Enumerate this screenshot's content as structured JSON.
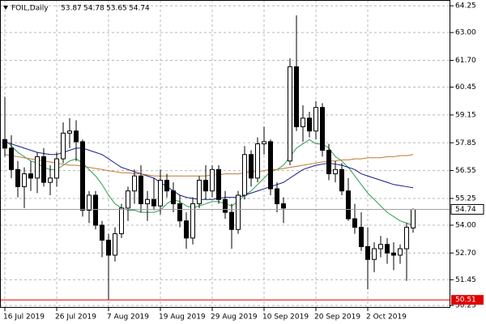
{
  "chart_data": {
    "type": "candlestick",
    "title": "FOIL,Daily",
    "x": [
      "16 Jul 2019",
      null,
      null,
      null,
      null,
      null,
      null,
      null,
      "26 Jul 2019",
      null,
      null,
      null,
      null,
      null,
      null,
      null,
      "7 Aug 2019",
      null,
      null,
      null,
      null,
      null,
      null,
      null,
      "19 Aug 2019",
      null,
      null,
      null,
      null,
      null,
      null,
      null,
      "29 Aug 2019",
      null,
      null,
      null,
      null,
      null,
      null,
      null,
      "10 Sep 2019",
      null,
      null,
      null,
      null,
      null,
      null,
      null,
      "20 Sep 2019",
      null,
      null,
      null,
      null,
      null,
      null,
      null,
      "2 Oct 2019",
      null,
      null,
      null,
      null,
      null,
      null,
      null
    ],
    "open": [
      58.0,
      57.6,
      56.6,
      55.8,
      56.4,
      56.2,
      57.2,
      56.0,
      56.2,
      57.1,
      58.3,
      58.4,
      57.9,
      54.7,
      55.4,
      54.0,
      53.3,
      52.6,
      53.6,
      54.8,
      55.6,
      56.3,
      55.0,
      55.2,
      54.9,
      56.1,
      55.6,
      55.0,
      54.2,
      53.4,
      55.0,
      56.1,
      55.6,
      56.6,
      55.2,
      54.6,
      53.8,
      55.4,
      57.3,
      56.2,
      57.8,
      57.9,
      55.7,
      55.0,
      57.0,
      61.4,
      58.6,
      59.0,
      58.4,
      59.5,
      57.5,
      56.4,
      56.6,
      55.6,
      54.3,
      53.9,
      53.0,
      52.4,
      52.9,
      53.1,
      52.7,
      52.6,
      52.9,
      53.87
    ],
    "high": [
      60.0,
      58.2,
      57.0,
      56.7,
      57.0,
      57.4,
      57.6,
      56.8,
      57.4,
      58.8,
      59.0,
      58.9,
      58.0,
      55.6,
      55.6,
      54.2,
      53.6,
      53.9,
      55.0,
      55.8,
      56.6,
      56.8,
      55.6,
      56.2,
      56.6,
      56.4,
      56.0,
      55.4,
      54.6,
      55.3,
      56.3,
      56.8,
      56.8,
      56.8,
      55.6,
      55.0,
      55.6,
      57.7,
      57.5,
      58.1,
      58.6,
      58.0,
      56.0,
      55.3,
      61.8,
      63.8,
      59.6,
      59.3,
      59.8,
      59.7,
      57.8,
      57.0,
      56.9,
      56.2,
      55.0,
      54.6,
      53.9,
      53.2,
      53.5,
      53.4,
      53.2,
      53.1,
      54.1,
      54.78
    ],
    "low": [
      57.2,
      56.2,
      55.3,
      54.8,
      55.6,
      55.5,
      55.8,
      55.4,
      55.8,
      56.9,
      57.6,
      57.0,
      54.4,
      54.1,
      53.8,
      52.5,
      50.51,
      52.3,
      53.4,
      54.2,
      55.0,
      54.6,
      54.2,
      54.7,
      54.5,
      55.3,
      54.6,
      53.9,
      52.9,
      53.1,
      54.8,
      55.2,
      55.3,
      55.0,
      54.3,
      52.9,
      53.6,
      55.2,
      55.8,
      56.0,
      57.3,
      55.4,
      54.6,
      54.1,
      56.8,
      58.4,
      57.9,
      58.1,
      58.0,
      57.2,
      56.1,
      56.0,
      55.4,
      54.2,
      53.6,
      52.8,
      51.0,
      51.8,
      52.5,
      52.2,
      51.9,
      52.2,
      51.4,
      53.65
    ],
    "close": [
      57.6,
      56.6,
      55.8,
      56.4,
      56.2,
      57.2,
      56.0,
      56.2,
      57.1,
      58.3,
      58.4,
      57.9,
      54.7,
      55.4,
      54.0,
      53.3,
      52.6,
      53.6,
      54.8,
      55.6,
      56.3,
      55.0,
      55.2,
      54.9,
      56.1,
      55.6,
      55.0,
      54.2,
      53.4,
      55.0,
      56.1,
      55.6,
      56.6,
      55.2,
      54.6,
      53.8,
      55.4,
      57.3,
      56.2,
      57.8,
      57.9,
      55.7,
      55.0,
      54.8,
      61.4,
      58.6,
      59.0,
      58.4,
      59.5,
      57.5,
      56.4,
      56.6,
      55.6,
      54.3,
      53.9,
      53.0,
      52.4,
      52.9,
      53.1,
      52.7,
      52.6,
      52.9,
      53.9,
      54.74
    ],
    "lines": [
      {
        "color": "#2e9e50",
        "values": [
          58.0,
          57.7,
          57.4,
          57.2,
          57.0,
          56.9,
          56.7,
          56.6,
          56.6,
          56.8,
          57.0,
          57.1,
          56.9,
          56.6,
          56.3,
          55.9,
          55.4,
          55.0,
          54.8,
          54.7,
          54.7,
          54.6,
          54.6,
          54.6,
          54.7,
          55.0,
          55.2,
          55.1,
          54.9,
          54.8,
          54.9,
          55.0,
          55.1,
          55.1,
          55.0,
          54.9,
          55.1,
          55.4,
          55.6,
          55.9,
          56.2,
          56.5,
          56.6,
          56.8,
          57.2,
          57.6,
          57.8,
          58.0,
          57.8,
          57.8,
          57.6,
          57.2,
          57.0,
          56.7,
          56.3,
          55.9,
          55.5,
          55.2,
          54.9,
          54.6,
          54.4,
          54.2,
          54.1,
          54.0
        ]
      },
      {
        "color": "#1a1a8c",
        "values": [
          57.9,
          57.8,
          57.7,
          57.6,
          57.5,
          57.4,
          57.35,
          57.3,
          57.3,
          57.4,
          57.5,
          57.6,
          57.6,
          57.5,
          57.4,
          57.3,
          57.1,
          56.9,
          56.7,
          56.6,
          56.5,
          56.4,
          56.3,
          56.2,
          56.0,
          55.8,
          55.6,
          55.4,
          55.3,
          55.25,
          55.2,
          55.2,
          55.2,
          55.25,
          55.3,
          55.3,
          55.3,
          55.4,
          55.5,
          55.6,
          55.7,
          55.8,
          55.9,
          56.0,
          56.2,
          56.4,
          56.6,
          56.7,
          56.8,
          56.85,
          56.9,
          56.85,
          56.8,
          56.7,
          56.6,
          56.4,
          56.3,
          56.2,
          56.1,
          56.0,
          55.9,
          55.85,
          55.8,
          55.75
        ]
      },
      {
        "color": "#c07830",
        "values": [
          57.3,
          57.25,
          57.2,
          57.15,
          57.1,
          57.05,
          57.0,
          56.95,
          56.9,
          56.85,
          56.8,
          56.8,
          56.75,
          56.7,
          56.65,
          56.6,
          56.55,
          56.5,
          56.45,
          56.45,
          56.4,
          56.4,
          56.35,
          56.3,
          56.3,
          56.3,
          56.3,
          56.3,
          56.3,
          56.3,
          56.3,
          56.3,
          56.35,
          56.35,
          56.4,
          56.4,
          56.4,
          56.45,
          56.5,
          56.5,
          56.55,
          56.6,
          56.6,
          56.65,
          56.7,
          56.75,
          56.8,
          56.85,
          56.9,
          56.95,
          57.0,
          57.0,
          57.05,
          57.05,
          57.1,
          57.1,
          57.15,
          57.15,
          57.15,
          57.2,
          57.2,
          57.25,
          57.25,
          57.3
        ]
      }
    ],
    "min_line": 50.51,
    "min_line_color": "#e00000",
    "ylim": [
      50.14,
      64.52
    ],
    "yticks": [
      64.25,
      {
        "value": 63.0,
        "label": "63.00"
      },
      {
        "value": 61.7,
        "label": "61.70"
      },
      60.45,
      59.15,
      57.85,
      56.55,
      55.25,
      {
        "value": 54.0,
        "label": "54.00"
      },
      {
        "value": 52.7,
        "label": "52.70"
      },
      51.45,
      50.25
    ],
    "grid": true
  }
}
